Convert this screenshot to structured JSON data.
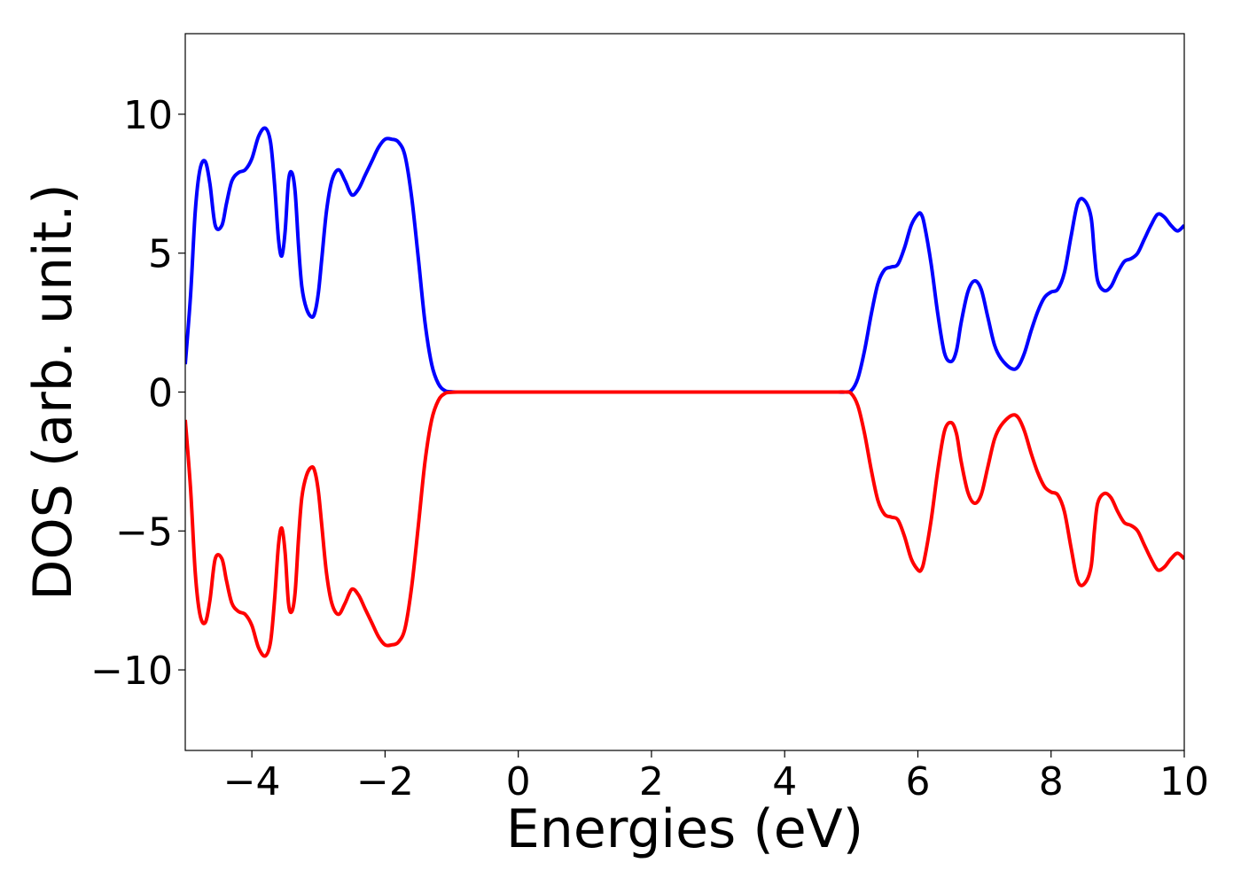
{
  "chart_data": {
    "type": "line",
    "title": "",
    "xlabel": "Energies (eV)",
    "ylabel": "DOS (arb. unit.)",
    "xlim": [
      -5,
      10
    ],
    "ylim": [
      -12.9,
      12.9
    ],
    "x_ticks": [
      -4,
      -2,
      0,
      2,
      4,
      6,
      8,
      10
    ],
    "x_tick_labels": [
      "−4",
      "−2",
      "0",
      "2",
      "4",
      "6",
      "8",
      "10"
    ],
    "y_ticks": [
      10,
      5,
      0,
      -5,
      -10
    ],
    "y_tick_labels": [
      "10",
      "5",
      "0",
      "−5",
      "−10"
    ],
    "grid": false,
    "legend": "none",
    "series": [
      {
        "color": "#0000ff",
        "x": [
          -5.0,
          -4.92,
          -4.85,
          -4.78,
          -4.7,
          -4.63,
          -4.55,
          -4.45,
          -4.38,
          -4.3,
          -4.2,
          -4.1,
          -4.0,
          -3.9,
          -3.8,
          -3.72,
          -3.66,
          -3.6,
          -3.55,
          -3.5,
          -3.45,
          -3.4,
          -3.35,
          -3.3,
          -3.25,
          -3.18,
          -3.1,
          -3.05,
          -3.0,
          -2.95,
          -2.88,
          -2.8,
          -2.7,
          -2.6,
          -2.5,
          -2.4,
          -2.3,
          -2.2,
          -2.1,
          -2.0,
          -1.9,
          -1.8,
          -1.7,
          -1.6,
          -1.5,
          -1.4,
          -1.3,
          -1.2,
          -1.1,
          -1.0,
          -0.9,
          -0.8,
          -0.7,
          -0.6,
          -0.5,
          -0.3,
          0,
          1,
          2,
          3,
          4,
          4.6,
          4.8,
          4.9,
          5.0,
          5.1,
          5.2,
          5.3,
          5.4,
          5.5,
          5.6,
          5.7,
          5.8,
          5.9,
          6.0,
          6.05,
          6.1,
          6.2,
          6.3,
          6.4,
          6.5,
          6.58,
          6.65,
          6.75,
          6.85,
          6.95,
          7.05,
          7.15,
          7.25,
          7.4,
          7.5,
          7.6,
          7.7,
          7.8,
          7.9,
          8.0,
          8.1,
          8.2,
          8.3,
          8.4,
          8.5,
          8.6,
          8.65,
          8.7,
          8.8,
          8.9,
          9.0,
          9.1,
          9.2,
          9.3,
          9.4,
          9.5,
          9.6,
          9.7,
          9.8,
          9.9,
          10.0
        ],
        "y": [
          1.0,
          3.5,
          6.5,
          8.0,
          8.3,
          7.5,
          6.0,
          6.0,
          6.8,
          7.6,
          7.9,
          8.0,
          8.4,
          9.2,
          9.5,
          9.0,
          7.5,
          5.5,
          4.9,
          5.8,
          7.6,
          7.9,
          7.2,
          5.3,
          3.8,
          3.0,
          2.7,
          2.9,
          3.6,
          4.8,
          6.5,
          7.6,
          8.0,
          7.6,
          7.1,
          7.3,
          7.8,
          8.3,
          8.8,
          9.1,
          9.1,
          9.0,
          8.5,
          7.0,
          4.8,
          2.5,
          1.0,
          0.3,
          0.05,
          0.01,
          0.0,
          0.0,
          0.0,
          0.0,
          0.0,
          0.0,
          0.0,
          0.0,
          0.0,
          0.0,
          0.0,
          0.0,
          0.0,
          0.0,
          0.05,
          0.5,
          1.5,
          2.8,
          3.9,
          4.4,
          4.5,
          4.6,
          5.2,
          6.0,
          6.4,
          6.4,
          6.0,
          4.6,
          2.8,
          1.4,
          1.1,
          1.5,
          2.5,
          3.6,
          4.0,
          3.7,
          2.7,
          1.7,
          1.2,
          0.85,
          0.9,
          1.4,
          2.2,
          2.9,
          3.4,
          3.6,
          3.7,
          4.3,
          5.6,
          6.8,
          6.9,
          6.3,
          5.0,
          4.0,
          3.65,
          3.8,
          4.3,
          4.7,
          4.8,
          5.0,
          5.5,
          6.0,
          6.4,
          6.3,
          6.0,
          5.8,
          6.0
        ]
      },
      {
        "color": "#ff0000",
        "x": [
          -5.0,
          -4.92,
          -4.85,
          -4.78,
          -4.7,
          -4.63,
          -4.55,
          -4.45,
          -4.38,
          -4.3,
          -4.2,
          -4.1,
          -4.0,
          -3.9,
          -3.8,
          -3.72,
          -3.66,
          -3.6,
          -3.55,
          -3.5,
          -3.45,
          -3.4,
          -3.35,
          -3.3,
          -3.25,
          -3.18,
          -3.1,
          -3.05,
          -3.0,
          -2.95,
          -2.88,
          -2.8,
          -2.7,
          -2.6,
          -2.5,
          -2.4,
          -2.3,
          -2.2,
          -2.1,
          -2.0,
          -1.9,
          -1.8,
          -1.7,
          -1.6,
          -1.5,
          -1.4,
          -1.3,
          -1.2,
          -1.1,
          -1.0,
          -0.9,
          -0.8,
          -0.7,
          -0.6,
          -0.5,
          -0.3,
          0,
          1,
          2,
          3,
          4,
          4.6,
          4.8,
          4.9,
          5.0,
          5.1,
          5.2,
          5.3,
          5.4,
          5.5,
          5.6,
          5.7,
          5.8,
          5.9,
          6.0,
          6.05,
          6.1,
          6.2,
          6.3,
          6.4,
          6.5,
          6.58,
          6.65,
          6.75,
          6.85,
          6.95,
          7.05,
          7.15,
          7.25,
          7.4,
          7.5,
          7.6,
          7.7,
          7.8,
          7.9,
          8.0,
          8.1,
          8.2,
          8.3,
          8.4,
          8.5,
          8.6,
          8.65,
          8.7,
          8.8,
          8.9,
          9.0,
          9.1,
          9.2,
          9.3,
          9.4,
          9.5,
          9.6,
          9.7,
          9.8,
          9.9,
          10.0
        ],
        "y": [
          -1.0,
          -3.5,
          -6.5,
          -8.0,
          -8.3,
          -7.5,
          -6.0,
          -6.0,
          -6.8,
          -7.6,
          -7.9,
          -8.0,
          -8.4,
          -9.2,
          -9.5,
          -9.0,
          -7.5,
          -5.5,
          -4.9,
          -5.8,
          -7.6,
          -7.9,
          -7.2,
          -5.3,
          -3.8,
          -3.0,
          -2.7,
          -2.9,
          -3.6,
          -4.8,
          -6.5,
          -7.6,
          -8.0,
          -7.6,
          -7.1,
          -7.3,
          -7.8,
          -8.3,
          -8.8,
          -9.1,
          -9.1,
          -9.0,
          -8.5,
          -7.0,
          -4.8,
          -2.5,
          -1.0,
          -0.3,
          -0.05,
          -0.01,
          0.0,
          0.0,
          0.0,
          0.0,
          0.0,
          0.0,
          0.0,
          0.0,
          0.0,
          0.0,
          0.0,
          0.0,
          0.0,
          0.0,
          -0.05,
          -0.5,
          -1.5,
          -2.8,
          -3.9,
          -4.4,
          -4.5,
          -4.6,
          -5.2,
          -6.0,
          -6.4,
          -6.4,
          -6.0,
          -4.6,
          -2.8,
          -1.4,
          -1.1,
          -1.5,
          -2.5,
          -3.6,
          -4.0,
          -3.7,
          -2.7,
          -1.7,
          -1.2,
          -0.85,
          -0.9,
          -1.4,
          -2.2,
          -2.9,
          -3.4,
          -3.6,
          -3.7,
          -4.3,
          -5.6,
          -6.8,
          -6.9,
          -6.3,
          -5.0,
          -4.0,
          -3.65,
          -3.8,
          -4.3,
          -4.7,
          -4.8,
          -5.0,
          -5.5,
          -6.0,
          -6.4,
          -6.3,
          -6.0,
          -5.8,
          -6.0
        ]
      }
    ]
  }
}
